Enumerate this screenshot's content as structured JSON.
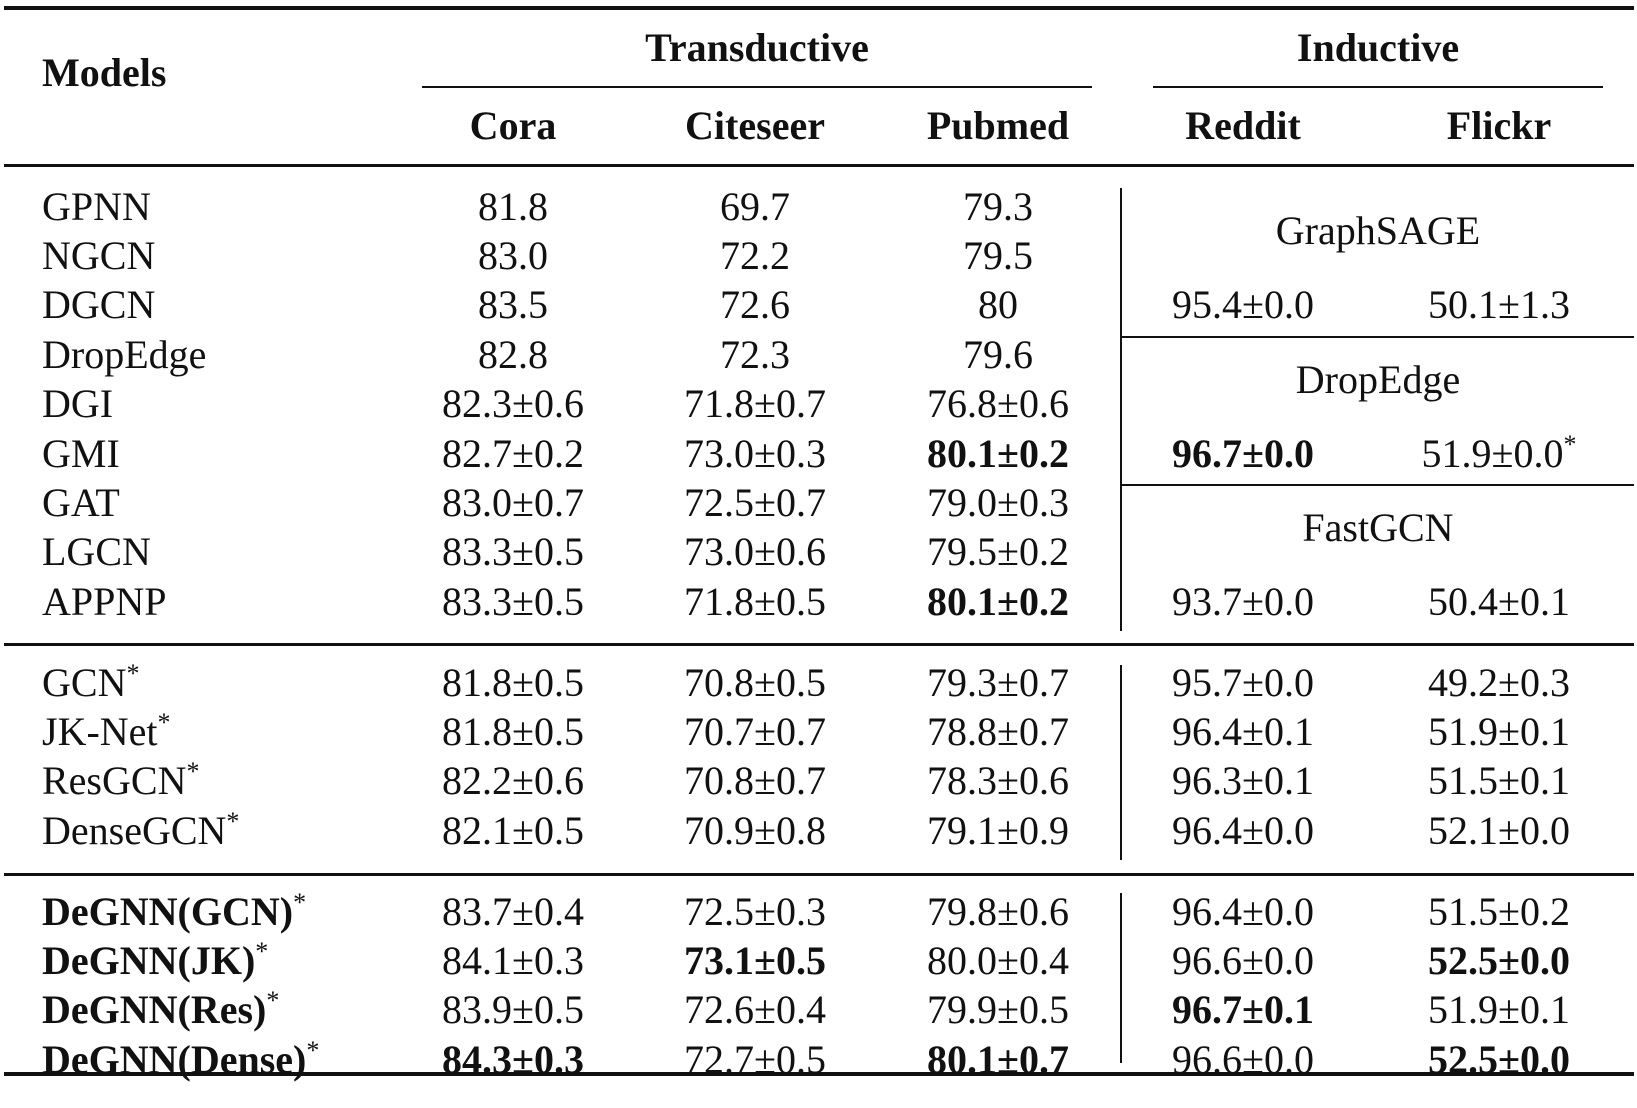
{
  "header": {
    "models": "Models",
    "groups": [
      {
        "label": "Transductive"
      },
      {
        "label": "Inductive"
      }
    ],
    "columns": [
      "Cora",
      "Citeseer",
      "Pubmed",
      "Reddit",
      "Flickr"
    ]
  },
  "section1": {
    "rows": [
      {
        "model": "GPNN",
        "cora": "81.8",
        "citeseer": "69.7",
        "pubmed": "79.3"
      },
      {
        "model": "NGCN",
        "cora": "83.0",
        "citeseer": "72.2",
        "pubmed": "79.5"
      },
      {
        "model": "DGCN",
        "cora": "83.5",
        "citeseer": "72.6",
        "pubmed": "80"
      },
      {
        "model": "DropEdge",
        "cora": "82.8",
        "citeseer": "72.3",
        "pubmed": "79.6"
      },
      {
        "model": "DGI",
        "cora": "82.3±0.6",
        "citeseer": "71.8±0.7",
        "pubmed": "76.8±0.6"
      },
      {
        "model": "GMI",
        "cora": "82.7±0.2",
        "citeseer": "73.0±0.3",
        "pubmed": "80.1±0.2"
      },
      {
        "model": "GAT",
        "cora": "83.0±0.7",
        "citeseer": "72.5±0.7",
        "pubmed": "79.0±0.3"
      },
      {
        "model": "LGCN",
        "cora": "83.3±0.5",
        "citeseer": "73.0±0.6",
        "pubmed": "79.5±0.2"
      },
      {
        "model": "APPNP",
        "cora": "83.3±0.5",
        "citeseer": "71.8±0.5",
        "pubmed": "80.1±0.2"
      }
    ],
    "inductive_blocks": [
      {
        "name": "GraphSAGE",
        "reddit": "95.4±0.0",
        "flickr": "50.1±1.3"
      },
      {
        "name": "DropEdge",
        "reddit": "96.7±0.0",
        "flickr": "51.9±0.0"
      },
      {
        "name": "FastGCN",
        "reddit": "93.7±0.0",
        "flickr": "50.4±0.1"
      }
    ]
  },
  "section2": {
    "rows": [
      {
        "model": "GCN",
        "cora": "81.8±0.5",
        "citeseer": "70.8±0.5",
        "pubmed": "79.3±0.7",
        "reddit": "95.7±0.0",
        "flickr": "49.2±0.3"
      },
      {
        "model": "JK-Net",
        "cora": "81.8±0.5",
        "citeseer": "70.7±0.7",
        "pubmed": "78.8±0.7",
        "reddit": "96.4±0.1",
        "flickr": "51.9±0.1"
      },
      {
        "model": "ResGCN",
        "cora": "82.2±0.6",
        "citeseer": "70.8±0.7",
        "pubmed": "78.3±0.6",
        "reddit": "96.3±0.1",
        "flickr": "51.5±0.1"
      },
      {
        "model": "DenseGCN",
        "cora": "82.1±0.5",
        "citeseer": "70.9±0.8",
        "pubmed": "79.1±0.9",
        "reddit": "96.4±0.0",
        "flickr": "52.1±0.0"
      }
    ]
  },
  "section3": {
    "rows": [
      {
        "model": "DeGNN(GCN)",
        "cora": "83.7±0.4",
        "citeseer": "72.5±0.3",
        "pubmed": "79.8±0.6",
        "reddit": "96.4±0.0",
        "flickr": "51.5±0.2"
      },
      {
        "model": "DeGNN(JK)",
        "cora": "84.1±0.3",
        "citeseer": "73.1±0.5",
        "pubmed": "80.0±0.4",
        "reddit": "96.6±0.0",
        "flickr": "52.5±0.0"
      },
      {
        "model": "DeGNN(Res)",
        "cora": "83.9±0.5",
        "citeseer": "72.6±0.4",
        "pubmed": "79.9±0.5",
        "reddit": "96.7±0.1",
        "flickr": "51.9±0.1"
      },
      {
        "model": "DeGNN(Dense)",
        "cora": "84.3±0.3",
        "citeseer": "72.7±0.5",
        "pubmed": "80.1±0.7",
        "reddit": "96.6±0.0",
        "flickr": "52.5±0.0"
      }
    ]
  },
  "asterisk": "*"
}
